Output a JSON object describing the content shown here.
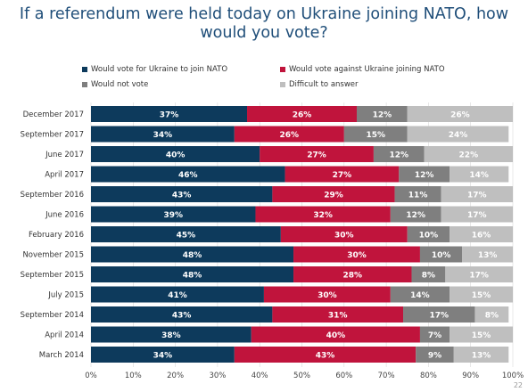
{
  "chart_data": {
    "type": "bar",
    "orientation": "horizontal-stacked",
    "title": "If a referendum were held today on Ukraine joining NATO, how would you vote?",
    "categories": [
      "December 2017",
      "September 2017",
      "June 2017",
      "April 2017",
      "September 2016",
      "June 2016",
      "February 2016",
      "November 2015",
      "September 2015",
      "July 2015",
      "September 2014",
      "April 2014",
      "March 2014"
    ],
    "series": [
      {
        "name": "Would vote for Ukraine to join NATO",
        "color": "#0d3a5c",
        "values": [
          37,
          34,
          40,
          46,
          43,
          39,
          45,
          48,
          48,
          41,
          43,
          38,
          34
        ]
      },
      {
        "name": "Would vote against Ukraine joining NATO",
        "color": "#c0143c",
        "values": [
          26,
          26,
          27,
          27,
          29,
          32,
          30,
          30,
          28,
          30,
          31,
          40,
          43
        ]
      },
      {
        "name": "Would not vote",
        "color": "#7f7f7f",
        "values": [
          12,
          15,
          12,
          12,
          11,
          12,
          10,
          10,
          8,
          14,
          17,
          7,
          9
        ]
      },
      {
        "name": "Difficult to answer",
        "color": "#bfbfbf",
        "values": [
          26,
          24,
          22,
          14,
          17,
          17,
          16,
          13,
          17,
          15,
          8,
          15,
          13
        ]
      }
    ],
    "xlim": [
      0,
      100
    ],
    "xticks": [
      "0%",
      "10%",
      "20%",
      "30%",
      "40%",
      "50%",
      "60%",
      "70%",
      "80%",
      "90%",
      "100%"
    ],
    "legend": "top",
    "grid": true
  },
  "page_number": "22"
}
